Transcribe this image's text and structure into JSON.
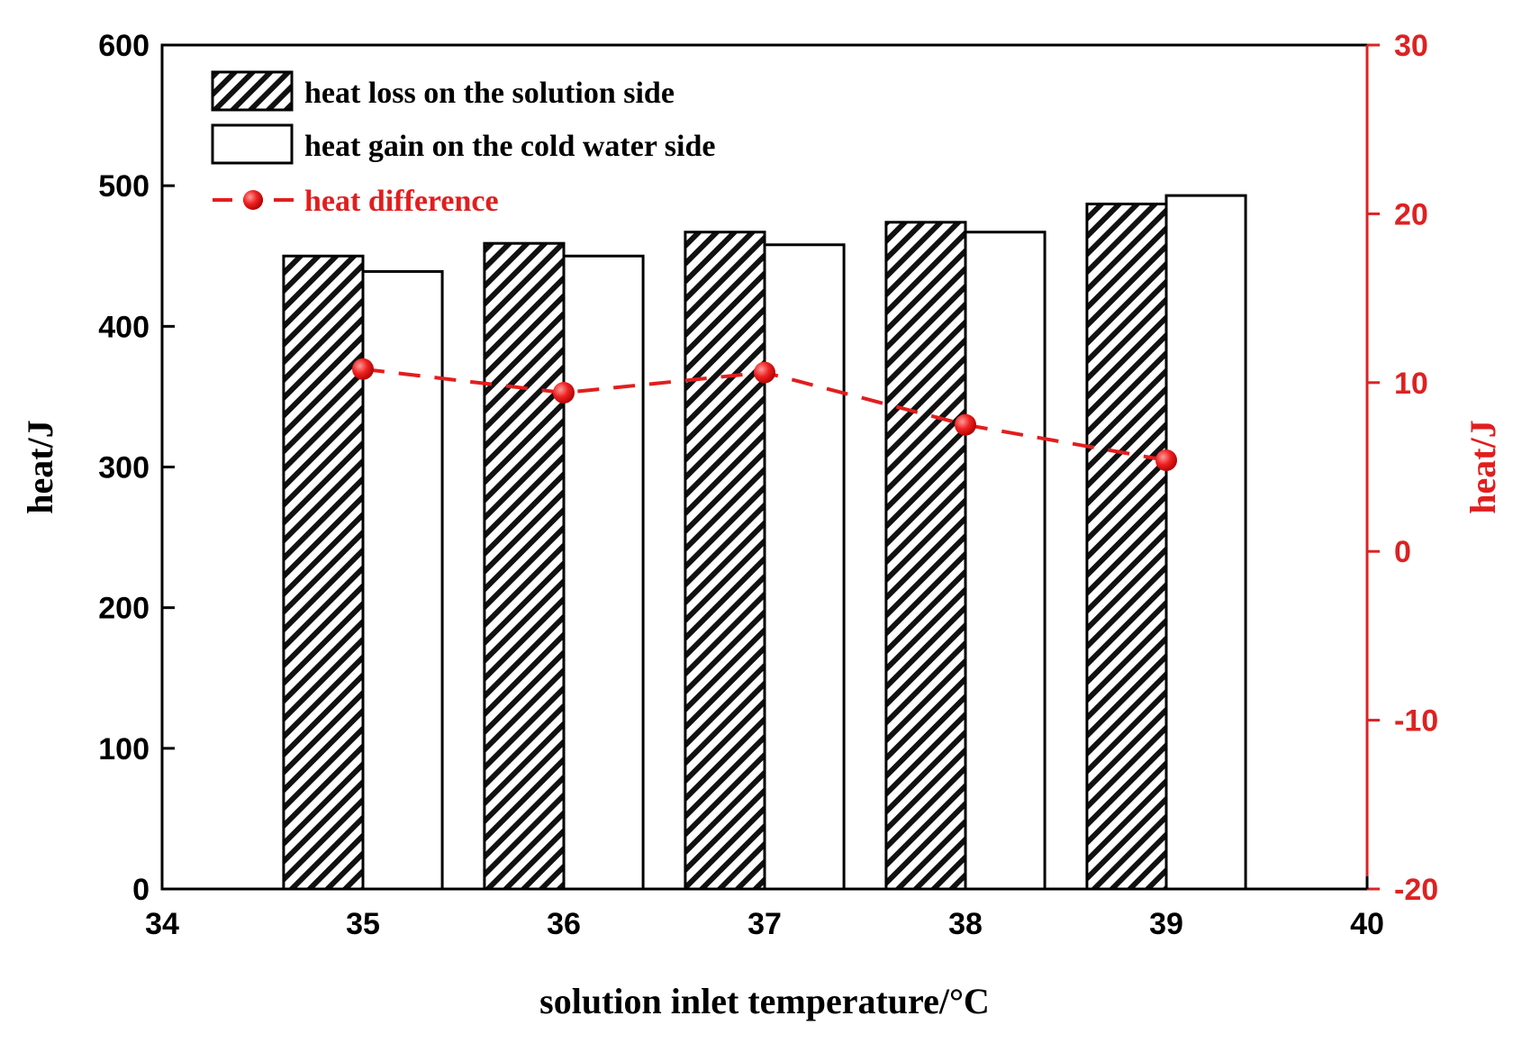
{
  "chart_data": {
    "type": "bar",
    "xlabel": "solution inlet temperature/°C",
    "ylabel": "heat/J",
    "y2label": "heat/J",
    "xlim": [
      34,
      40
    ],
    "ylim": [
      0,
      600
    ],
    "y2lim": [
      -20,
      30
    ],
    "xticks": [
      "34",
      "35",
      "36",
      "37",
      "38",
      "39",
      "40"
    ],
    "yticks": [
      "0",
      "100",
      "200",
      "300",
      "400",
      "500",
      "600"
    ],
    "y2ticks": [
      "-20",
      "-10",
      "0",
      "10",
      "20",
      "30"
    ],
    "categories": [
      35,
      36,
      37,
      38,
      39
    ],
    "series": [
      {
        "name": "heat loss on the solution side",
        "kind": "bar",
        "pattern": "hatched",
        "values": [
          450,
          459,
          467,
          474,
          487
        ]
      },
      {
        "name": "heat gain on the cold water side",
        "kind": "bar",
        "pattern": "open",
        "values": [
          439,
          450,
          458,
          467,
          493
        ]
      },
      {
        "name": "heat difference",
        "kind": "line",
        "axis": "right",
        "style": "dashed-circle-markers",
        "values": [
          10.8,
          9.4,
          10.6,
          7.5,
          5.4
        ]
      }
    ],
    "legend_position": "top-left",
    "colors": {
      "axis": "#000000",
      "secondary_axis": "#dd2222",
      "line": "#e21e1e"
    }
  }
}
